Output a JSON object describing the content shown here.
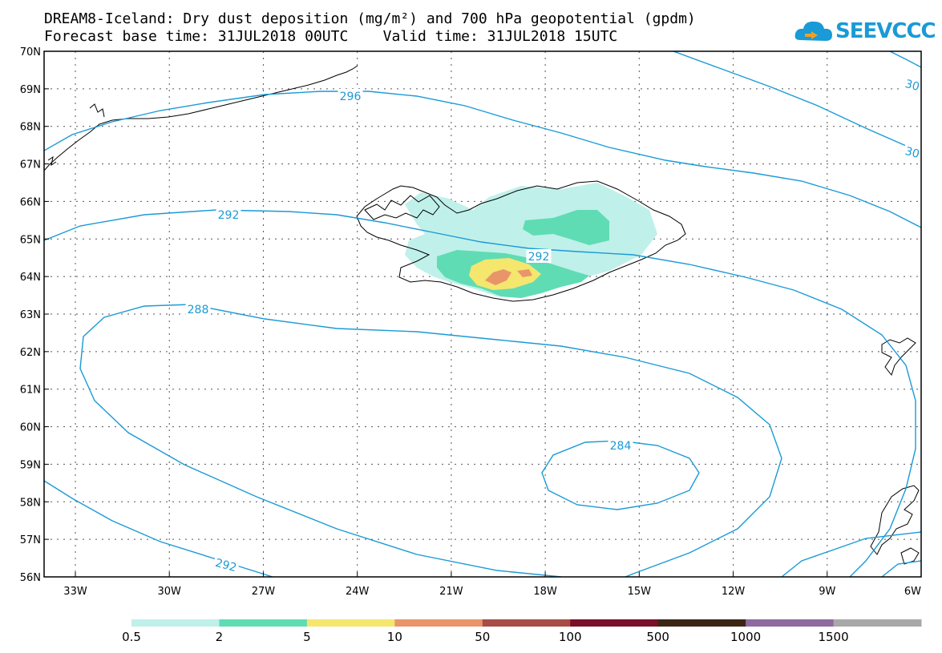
{
  "title": {
    "line1": "DREAM8-Iceland: Dry dust deposition (mg/m²) and 700 hPa geopotential (gpdm)",
    "line2": "Forecast base time: 31JUL2018 00UTC    Valid time: 31JUL2018 15UTC"
  },
  "logo": {
    "text": "SEEVCCC"
  },
  "map": {
    "lat_labels": [
      "70N",
      "69N",
      "68N",
      "67N",
      "66N",
      "65N",
      "64N",
      "63N",
      "62N",
      "61N",
      "60N",
      "59N",
      "58N",
      "57N",
      "56N"
    ],
    "lon_labels": [
      "33W",
      "30W",
      "27W",
      "24W",
      "21W",
      "18W",
      "15W",
      "12W",
      "9W",
      "6W"
    ],
    "contour_labels": [
      {
        "text": "296"
      },
      {
        "text": "292"
      },
      {
        "text": "292"
      },
      {
        "text": "288"
      },
      {
        "text": "284"
      },
      {
        "text": "292"
      },
      {
        "text": "30"
      },
      {
        "text": "30"
      }
    ]
  },
  "legend": {
    "colors": [
      "#c0f0ea",
      "#5fdcb4",
      "#f5e66e",
      "#e8956a",
      "#a84c46",
      "#7a0f2a",
      "#3b2616",
      "#8e6a9e",
      "#a8a8a8"
    ],
    "labels": [
      "0.5",
      "2",
      "5",
      "10",
      "50",
      "100",
      "500",
      "1000",
      "1500"
    ]
  },
  "colors": {
    "contour": "#1a9ad6"
  }
}
